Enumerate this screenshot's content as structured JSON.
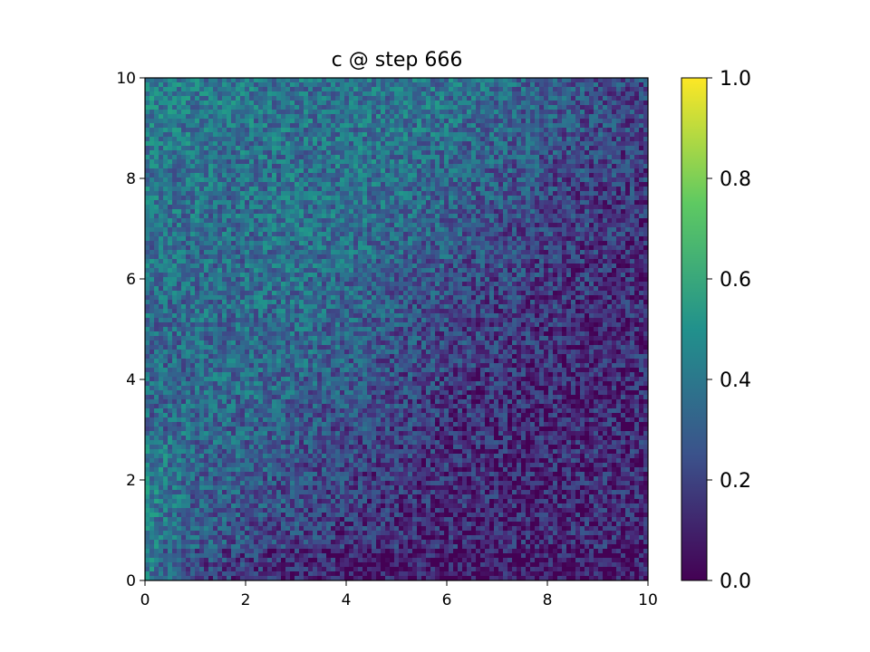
{
  "chart_data": {
    "type": "heatmap",
    "title": "c @ step 666",
    "xlabel": "",
    "ylabel": "",
    "xlim": [
      0,
      10
    ],
    "ylim": [
      0,
      10
    ],
    "x_ticks": [
      "0",
      "2",
      "4",
      "6",
      "8",
      "10"
    ],
    "y_ticks": [
      "0",
      "2",
      "4",
      "6",
      "8",
      "10"
    ],
    "grid": false,
    "colormap": "viridis",
    "colorbar": {
      "range": [
        0,
        1
      ],
      "ticks": [
        "0.0",
        "0.2",
        "0.4",
        "0.6",
        "0.8",
        "1.0"
      ],
      "placement": "right"
    },
    "value_range": [
      0,
      1
    ],
    "description_of_field": "noisy concentration field; higher values (~0.3-0.5) concentrated in a band near the top-left and along the left edge near x=0,y=0-2; lower values (~0.05-0.15) toward the bottom-right",
    "colors": [
      "#440154",
      "#3b528b",
      "#21918c",
      "#5ec962",
      "#fde725"
    ]
  }
}
